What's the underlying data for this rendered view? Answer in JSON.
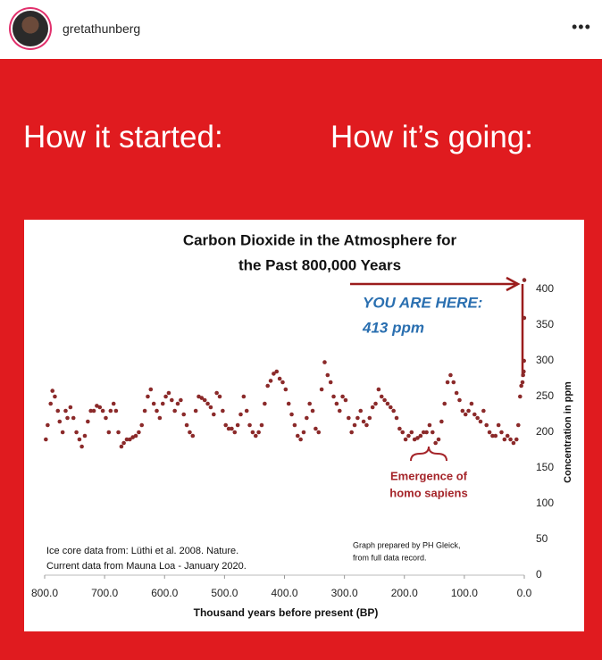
{
  "post": {
    "username": "gretathunberg",
    "left_caption": "How it started:",
    "right_caption": "How it’s going:"
  },
  "chart_data": {
    "type": "scatter",
    "title_lines": [
      "Carbon Dioxide in the Atmosphere for",
      "the Past 800,000 Years"
    ],
    "x_label": "Thousand years before present (BP)",
    "y_label": "Concentration in ppm",
    "annotations": [
      "YOU ARE HERE:",
      "413 ppm",
      "Emergence of",
      "homo sapiens"
    ],
    "source_lines": [
      "Ice core data from: Lüthi et al. 2008. Nature.",
      "Current data from Mauna Loa - January 2020."
    ],
    "credit_lines": [
      "Graph prepared by PH Gleick,",
      "from full data record."
    ],
    "color": "#8b2a2a",
    "xlim": [
      800,
      0
    ],
    "ylim": [
      0,
      420
    ],
    "xticks": [
      {
        "value": 800,
        "label": "800.0"
      },
      {
        "value": 700,
        "label": "700.0"
      },
      {
        "value": 600,
        "label": "600.0"
      },
      {
        "value": 500,
        "label": "500.0"
      },
      {
        "value": 400,
        "label": "400.0"
      },
      {
        "value": 300,
        "label": "300.0"
      },
      {
        "value": 200,
        "label": "200.0"
      },
      {
        "value": 100,
        "label": "100.0"
      },
      {
        "value": 0,
        "label": "0.0"
      }
    ],
    "yticks": [
      0,
      50,
      100,
      150,
      200,
      250,
      300,
      350,
      400
    ],
    "x": [
      798,
      795,
      790,
      787,
      783,
      778,
      775,
      770,
      765,
      762,
      757,
      752,
      747,
      742,
      738,
      733,
      728,
      723,
      718,
      713,
      708,
      703,
      698,
      693,
      690,
      685,
      681,
      677,
      672,
      668,
      663,
      658,
      653,
      648,
      643,
      638,
      633,
      628,
      623,
      618,
      613,
      608,
      603,
      598,
      593,
      588,
      583,
      578,
      573,
      568,
      563,
      558,
      553,
      548,
      543,
      538,
      533,
      528,
      523,
      518,
      513,
      508,
      503,
      498,
      493,
      488,
      483,
      478,
      473,
      468,
      463,
      458,
      453,
      448,
      443,
      438,
      433,
      428,
      423,
      418,
      413,
      408,
      403,
      398,
      393,
      388,
      383,
      378,
      373,
      368,
      363,
      358,
      353,
      348,
      343,
      338,
      333,
      328,
      323,
      318,
      313,
      308,
      303,
      298,
      293,
      288,
      283,
      278,
      273,
      268,
      263,
      258,
      253,
      248,
      243,
      238,
      233,
      228,
      223,
      218,
      213,
      208,
      203,
      198,
      193,
      188,
      183,
      178,
      173,
      168,
      163,
      158,
      153,
      148,
      143,
      138,
      133,
      128,
      123,
      118,
      113,
      108,
      103,
      98,
      93,
      88,
      83,
      78,
      73,
      68,
      63,
      58,
      53,
      48,
      43,
      38,
      33,
      28,
      23,
      18,
      13,
      10,
      7,
      5,
      3,
      2,
      1,
      0.5,
      0.2,
      0
    ],
    "values": [
      190,
      210,
      240,
      258,
      250,
      230,
      215,
      200,
      230,
      220,
      235,
      220,
      200,
      190,
      180,
      195,
      215,
      230,
      230,
      237,
      235,
      230,
      220,
      200,
      230,
      240,
      230,
      200,
      180,
      185,
      190,
      190,
      193,
      195,
      200,
      210,
      230,
      250,
      260,
      240,
      230,
      220,
      240,
      250,
      255,
      245,
      230,
      240,
      245,
      225,
      210,
      200,
      195,
      230,
      250,
      248,
      245,
      240,
      235,
      225,
      255,
      250,
      230,
      210,
      205,
      205,
      200,
      210,
      225,
      250,
      230,
      210,
      200,
      195,
      200,
      210,
      240,
      265,
      272,
      282,
      285,
      275,
      270,
      260,
      240,
      225,
      210,
      195,
      190,
      200,
      220,
      240,
      230,
      205,
      200,
      260,
      298,
      280,
      270,
      250,
      240,
      230,
      250,
      245,
      220,
      200,
      210,
      220,
      230,
      215,
      210,
      220,
      235,
      240,
      260,
      250,
      245,
      240,
      235,
      230,
      220,
      205,
      200,
      190,
      195,
      200,
      190,
      192,
      195,
      200,
      200,
      210,
      200,
      185,
      190,
      215,
      240,
      270,
      280,
      270,
      255,
      245,
      230,
      225,
      230,
      240,
      225,
      220,
      215,
      230,
      210,
      200,
      195,
      195,
      210,
      200,
      190,
      195,
      190,
      185,
      190,
      210,
      250,
      265,
      270,
      280,
      285,
      300,
      360,
      413
    ]
  }
}
